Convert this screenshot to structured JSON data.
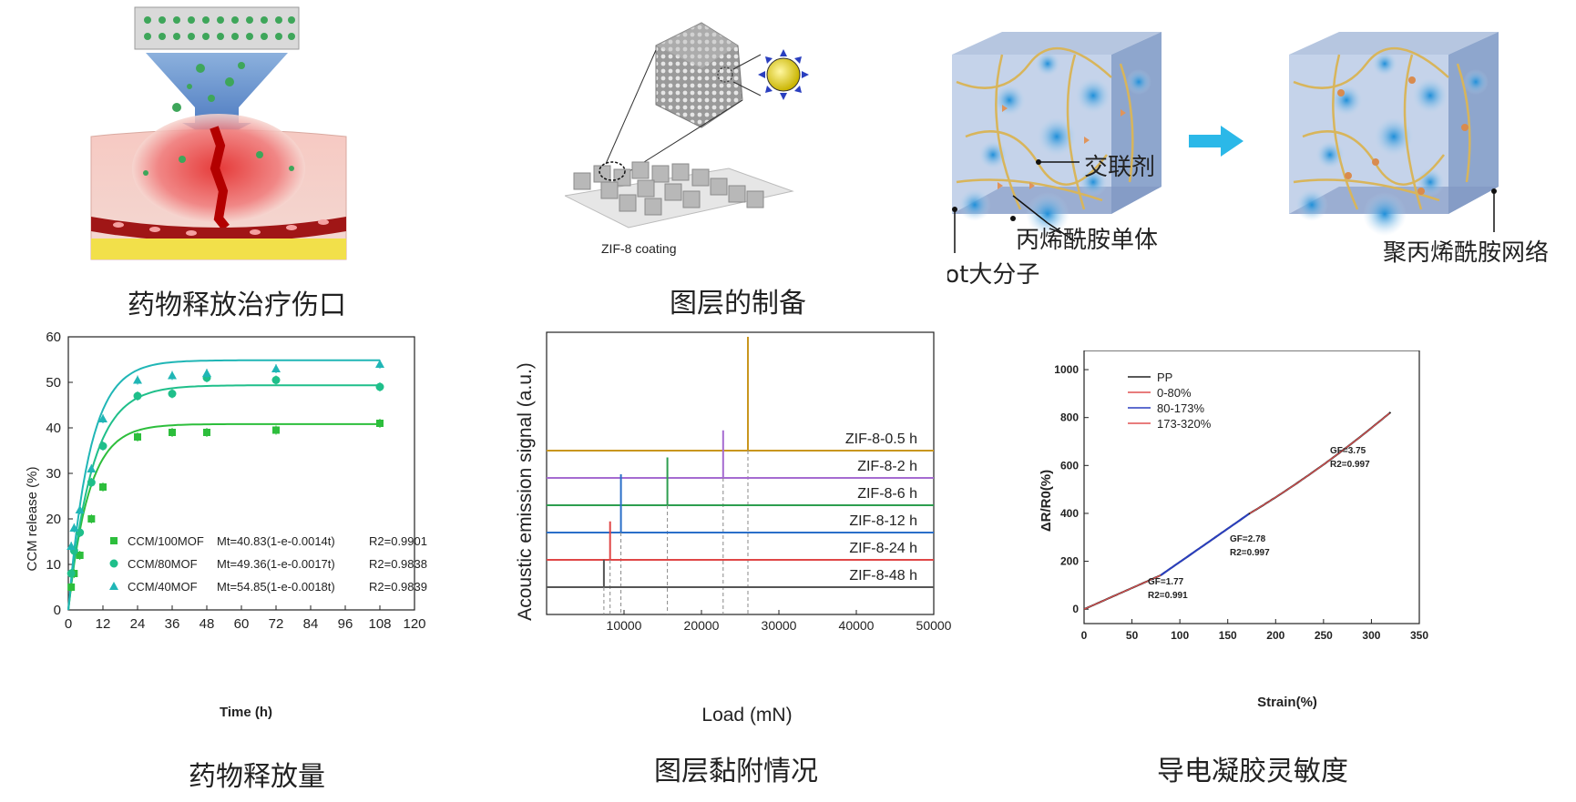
{
  "captions": {
    "top_left": "药物释放治疗伤口",
    "top_mid": "图层的制备",
    "bottom_left": "药物释放量",
    "bottom_mid": "图层黏附情况",
    "bottom_right": "导电凝胶灵敏度"
  },
  "illustration_mid": {
    "coating_label": "ZIF-8 coating"
  },
  "illustration_right": {
    "crosslinker_label": "交联剂",
    "monomer_label": "丙烯酰胺单体",
    "pedot_label": "Pedot大分子",
    "network_label": "聚丙烯酰胺网络"
  },
  "colors": {
    "release_dark": "#2dbe3c",
    "release_mid": "#1fbf8a",
    "release_light": "#20b6b6",
    "ae_gold": "#c9961e",
    "ae_purple": "#a56bd1",
    "ae_green": "#2d9e4f",
    "ae_blue": "#2a6fc9",
    "ae_red": "#e04646",
    "ae_gray": "#555555",
    "gf_red": "#e05050",
    "gf_blue": "#2a3fbf",
    "arrow_cyan": "#2bb8e8"
  },
  "chart_data": [
    {
      "type": "scatter",
      "xlabel": "Time (h)",
      "ylabel": "CCM release (%)",
      "xlim": [
        0,
        120
      ],
      "ylim": [
        0,
        60
      ],
      "x_ticks": [
        "0",
        "12",
        "24",
        "36",
        "48",
        "60",
        "72",
        "84",
        "96",
        "108",
        "120"
      ],
      "y_ticks": [
        "0",
        "10",
        "20",
        "30",
        "40",
        "50",
        "60"
      ],
      "x": [
        1,
        2,
        4,
        8,
        12,
        24,
        36,
        48,
        72,
        108
      ],
      "series": [
        {
          "name": "CCM/100MOF",
          "fit": "Mt=40.83(1-e-0.0014t)",
          "r2": "R2=0.9901",
          "values": [
            5,
            8,
            12,
            20,
            27,
            38,
            39,
            39,
            39.5,
            41
          ]
        },
        {
          "name": "CCM/80MOF",
          "fit": "Mt=49.36(1-e-0.0017t)",
          "r2": "R2=0.9838",
          "values": [
            8,
            13,
            17,
            28,
            36,
            47,
            47.5,
            51,
            50.5,
            49
          ]
        },
        {
          "name": "CCM/40MOF",
          "fit": "Mt=54.85(1-e-0.0018t)",
          "r2": "R2=0.9839",
          "values": [
            14,
            18,
            22,
            31,
            42,
            50.5,
            51.5,
            52,
            53,
            54
          ]
        }
      ],
      "legend_position": "lower-right"
    },
    {
      "type": "line",
      "xlabel": "Load (mN)",
      "ylabel": "Acoustic emission signal (a.u.)",
      "xlim": [
        0,
        50000
      ],
      "x_ticks": [
        "10000",
        "20000",
        "30000",
        "40000",
        "50000"
      ],
      "series": [
        {
          "name": "ZIF-8-0.5 h",
          "peaks": [
            26000
          ],
          "peak_height": 1.0
        },
        {
          "name": "ZIF-8-2 h",
          "peaks": [
            22800
          ],
          "peak_height": 0.95
        },
        {
          "name": "ZIF-8-6 h",
          "peaks": [
            15600
          ],
          "peak_height": 0.75
        },
        {
          "name": "ZIF-8-12 h",
          "peaks": [
            9600
          ],
          "peak_height": 0.8
        },
        {
          "name": "ZIF-8-24 h",
          "peaks": [
            8200
          ],
          "peak_height": 0.65
        },
        {
          "name": "ZIF-8-48 h",
          "peaks": [
            7400
          ],
          "peak_height": 0.55
        }
      ]
    },
    {
      "type": "line",
      "xlabel": "Strain(%)",
      "ylabel": "ΔR/R0(%)",
      "xlim": [
        0,
        350
      ],
      "ylim": [
        -60,
        1080
      ],
      "x_ticks": [
        "0",
        "50",
        "100",
        "150",
        "200",
        "250",
        "300",
        "350"
      ],
      "y_ticks": [
        "0",
        "200",
        "400",
        "600",
        "800",
        "1000"
      ],
      "series": [
        {
          "name": "PP"
        },
        {
          "name": "0-80%"
        },
        {
          "name": "80-173%"
        },
        {
          "name": "173-320%"
        }
      ],
      "annotations": [
        {
          "gf": "GF=1.77",
          "r2": "R2=0.991"
        },
        {
          "gf": "GF=2.78",
          "r2": "R2=0.997"
        },
        {
          "gf": "GF=3.75",
          "r2": "R2=0.997"
        }
      ]
    }
  ]
}
